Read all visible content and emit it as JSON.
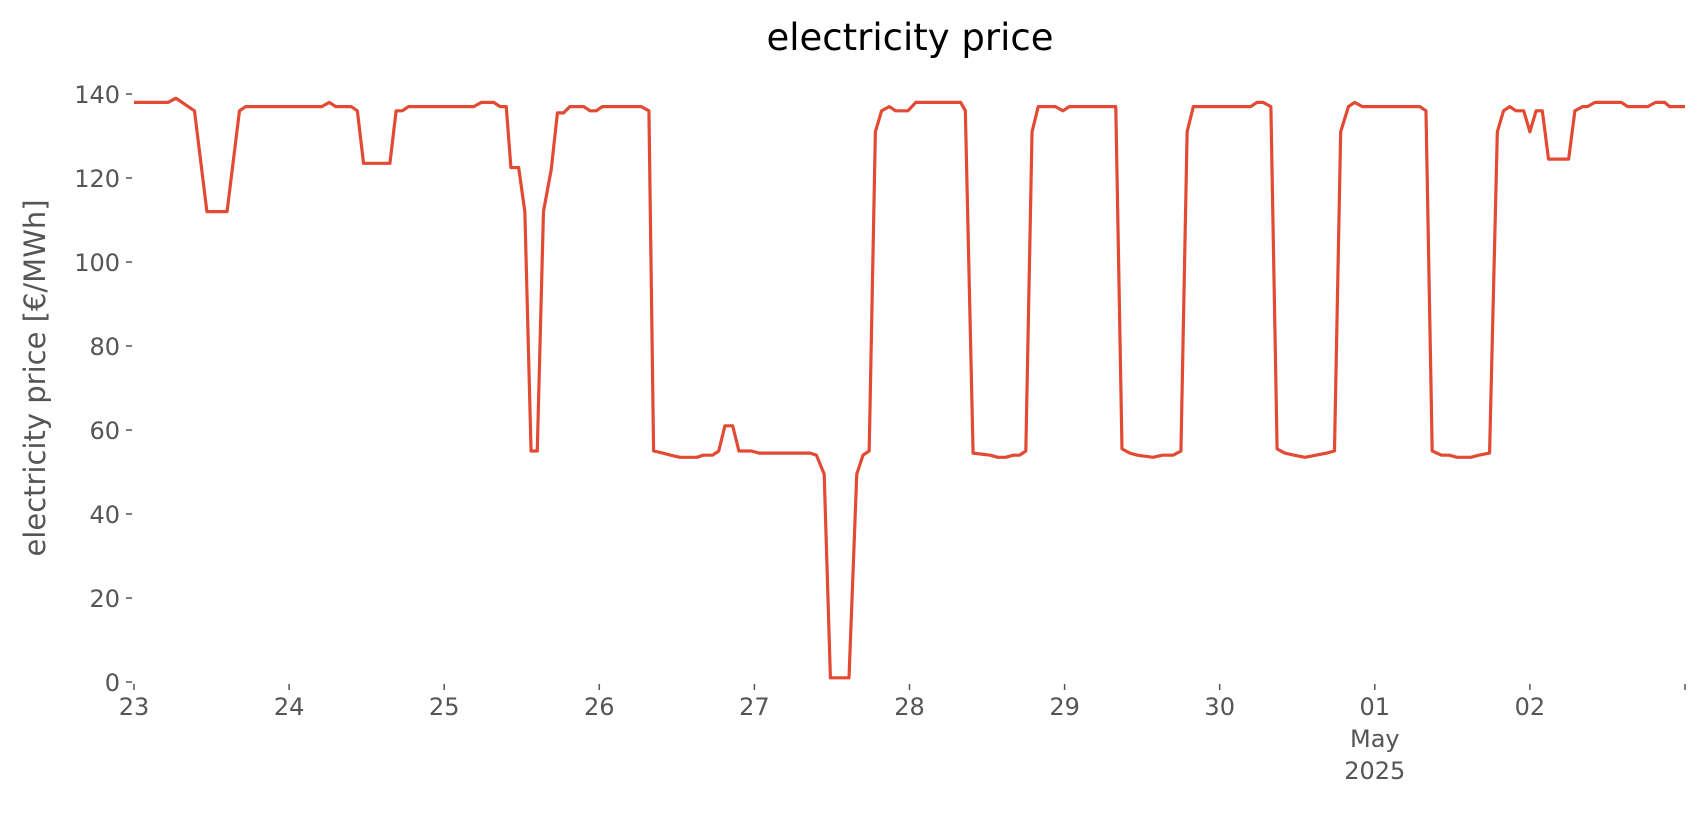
{
  "chart_data": {
    "type": "line",
    "title": "electricity price",
    "ylabel": "electricity price [€/MWh]",
    "x": [
      0,
      0.22,
      0.27,
      0.39,
      0.47,
      0.6,
      0.68,
      0.72,
      1.21,
      1.26,
      1.3,
      1.4,
      1.44,
      1.48,
      1.65,
      1.69,
      1.73,
      1.77,
      2.19,
      2.24,
      2.32,
      2.36,
      2.4,
      2.43,
      2.48,
      2.52,
      2.56,
      2.6,
      2.64,
      2.69,
      2.73,
      2.77,
      2.81,
      2.9,
      2.94,
      2.98,
      3.02,
      3.27,
      3.32,
      3.35,
      3.41,
      3.46,
      3.52,
      3.63,
      3.67,
      3.73,
      3.77,
      3.81,
      3.86,
      3.9,
      3.98,
      4.03,
      4.36,
      4.4,
      4.45,
      4.49,
      4.61,
      4.66,
      4.7,
      4.74,
      4.78,
      4.82,
      4.87,
      4.91,
      4.99,
      5.04,
      5.33,
      5.36,
      5.41,
      5.52,
      5.57,
      5.62,
      5.67,
      5.71,
      5.75,
      5.79,
      5.83,
      5.94,
      5.99,
      6.03,
      6.33,
      6.37,
      6.42,
      6.47,
      6.57,
      6.63,
      6.7,
      6.75,
      6.79,
      6.83,
      7.2,
      7.24,
      7.28,
      7.33,
      7.37,
      7.42,
      7.48,
      7.55,
      7.62,
      7.69,
      7.74,
      7.78,
      7.83,
      7.87,
      7.92,
      8.29,
      8.33,
      8.37,
      8.43,
      8.48,
      8.53,
      8.62,
      8.67,
      8.74,
      8.79,
      8.83,
      8.87,
      8.91,
      8.96,
      9.0,
      9.04,
      9.08,
      9.12,
      9.25,
      9.29,
      9.34,
      9.37,
      9.42,
      9.59,
      9.63,
      9.76,
      9.81,
      9.87,
      9.9,
      10.0
    ],
    "series": [
      {
        "name": "electricity price",
        "color": "#e24a33",
        "values": [
          138,
          138,
          139,
          136,
          112,
          112,
          136,
          137,
          137,
          138,
          137,
          137,
          136,
          123.5,
          123.5,
          136,
          136,
          137,
          137,
          138,
          138,
          137,
          137,
          122.5,
          122.5,
          112,
          55,
          55,
          112,
          122,
          135.5,
          135.5,
          137,
          137,
          136,
          136,
          137,
          137,
          136,
          55,
          54.5,
          54,
          53.5,
          53.5,
          54,
          54,
          55,
          61,
          61,
          55,
          55,
          54.5,
          54.5,
          54,
          49.5,
          1,
          1,
          49.5,
          54,
          55,
          131,
          136,
          137,
          136,
          136,
          138,
          138,
          136,
          54.5,
          54,
          53.5,
          53.5,
          54,
          54,
          55,
          131,
          137,
          137,
          136,
          137,
          137,
          55.5,
          54.5,
          54,
          53.5,
          54,
          54,
          55,
          131,
          137,
          137,
          138,
          138,
          137,
          55.5,
          54.5,
          54,
          53.5,
          54,
          54.5,
          55,
          131,
          137,
          138,
          137,
          137,
          136,
          55,
          54,
          54,
          53.5,
          53.5,
          54,
          54.5,
          131,
          136,
          137,
          136,
          136,
          131,
          136,
          136,
          124.5,
          124.5,
          136,
          137,
          137,
          138,
          138,
          137,
          137,
          138,
          138,
          137,
          137
        ]
      }
    ],
    "xlim": [
      0,
      10
    ],
    "xticks": [
      {
        "value": 0,
        "label": "23"
      },
      {
        "value": 1,
        "label": "24"
      },
      {
        "value": 2,
        "label": "25"
      },
      {
        "value": 3,
        "label": "26"
      },
      {
        "value": 4,
        "label": "27"
      },
      {
        "value": 5,
        "label": "28"
      },
      {
        "value": 6,
        "label": "29"
      },
      {
        "value": 7,
        "label": "30"
      },
      {
        "value": 8,
        "label": "01\nMay\n2025"
      },
      {
        "value": 9,
        "label": "02"
      },
      {
        "value": 10,
        "label": null
      }
    ],
    "ylim": [
      0,
      140
    ],
    "yticks": [
      0,
      20,
      40,
      60,
      80,
      100,
      120,
      140
    ],
    "grid": false
  }
}
